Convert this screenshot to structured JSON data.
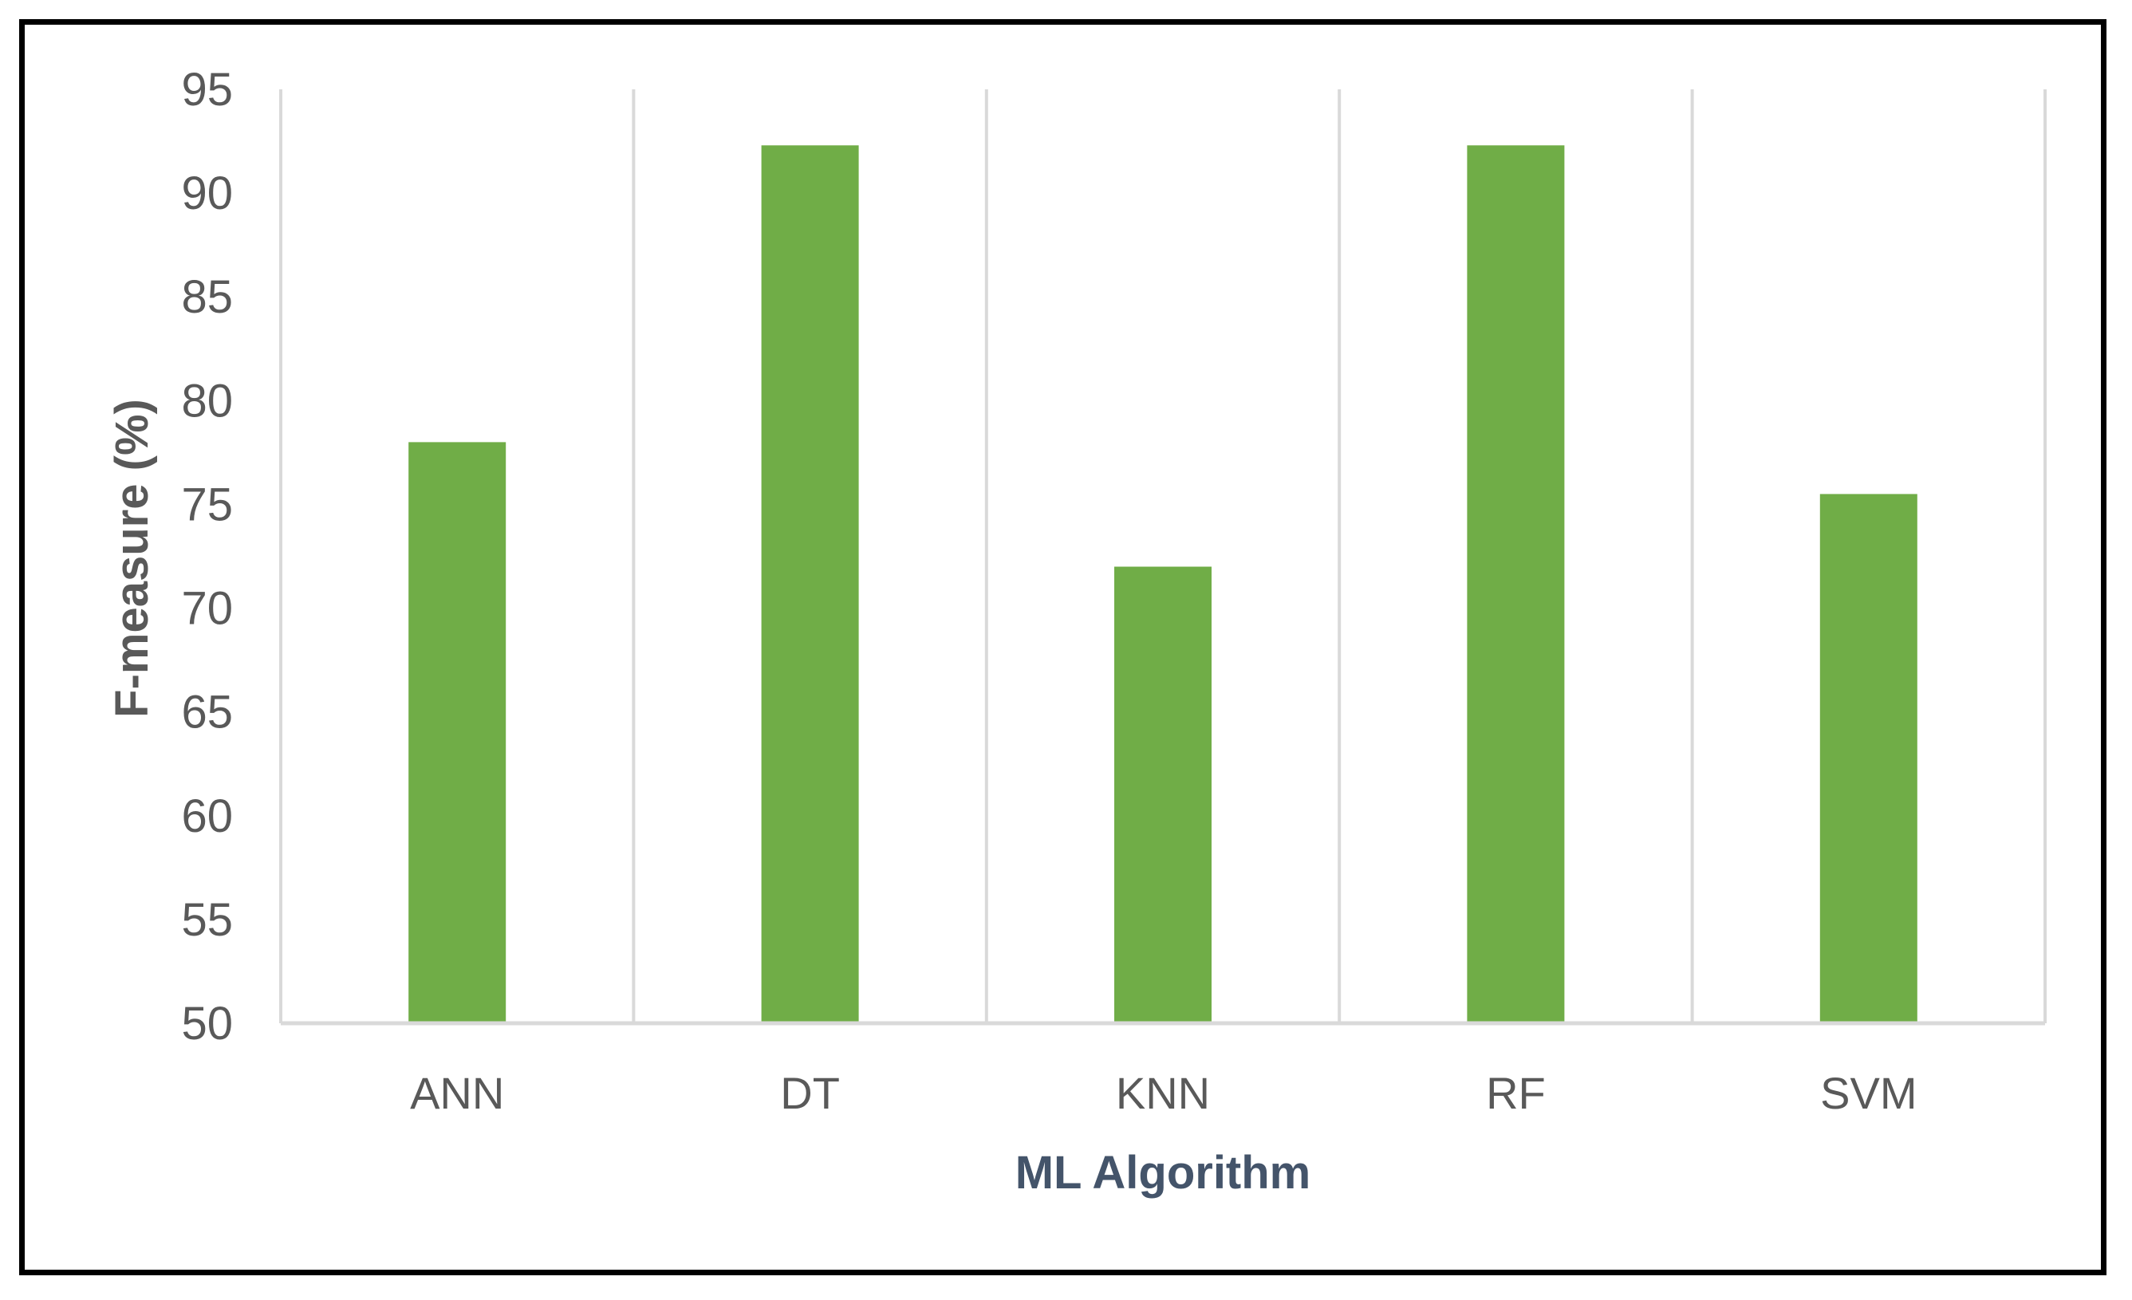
{
  "chart_data": {
    "type": "bar",
    "categories": [
      "ANN",
      "DT",
      "KNN",
      "RF",
      "SVM"
    ],
    "values": [
      78,
      92.3,
      72,
      92.3,
      75.5
    ],
    "xlabel": "ML Algorithm",
    "ylabel": "F-measure (%)",
    "ylim": [
      50,
      95
    ],
    "yticks": [
      50,
      55,
      60,
      65,
      70,
      75,
      80,
      85,
      90,
      95
    ],
    "grid": "vertical category separators",
    "legend": "none",
    "colors": {
      "bar": "#70AD47",
      "grid": "#D9D9D9",
      "tick_text": "#595959",
      "xlabel_text": "#44546A",
      "ylabel_text": "#595959",
      "frame": "#000000"
    }
  }
}
